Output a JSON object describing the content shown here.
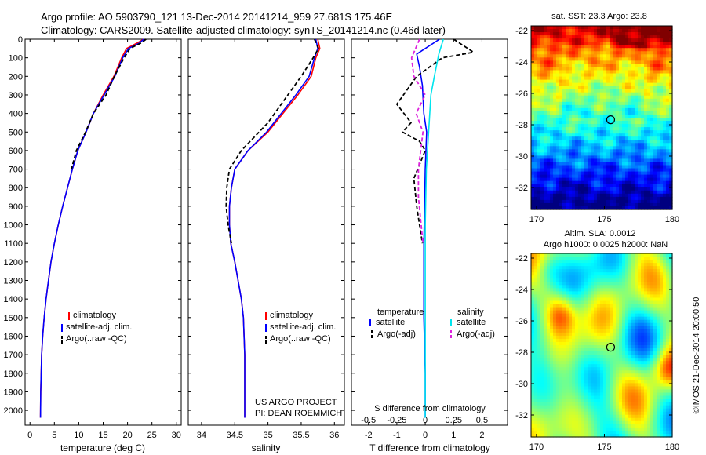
{
  "header": {
    "line1": "Argo profile: AO 5903790_121 13-Dec-2014 20141214_959 27.681S 175.46E",
    "line2": "Climatology: CARS2009. Satellite-adjusted climatology: synTS_20141214.nc (0.46d later)"
  },
  "panels": {
    "temperature": {
      "xlabel": "temperature (deg C)",
      "legend": [
        "climatology",
        "satellite-adj. clim.",
        "Argo(..raw -QC)"
      ]
    },
    "salinity": {
      "xlabel": "salinity",
      "legend": [
        "climatology",
        "satellite-adj. clim.",
        "Argo(..raw -QC)"
      ],
      "credit_1": "US ARGO PROJECT",
      "credit_2": "PI: DEAN ROEMMICH"
    },
    "difference": {
      "xlabel_top": "S difference from climatology",
      "xlabel_bottom": "T difference from climatology",
      "legend_temp_title": "temperature",
      "legend_sal_title": "salinity",
      "legend_temp": [
        "satellite",
        "Argo(-adj)"
      ],
      "legend_sal": [
        "satellite",
        "Argo(-adj)"
      ]
    }
  },
  "maps": {
    "sst_title": "sat. SST: 23.3 Argo: 23.8",
    "sla_title_1": "Altim. SLA: 0.0012",
    "sla_title_2": "Argo h1000: 0.0025 h2000: NaN",
    "stamp": "©IMOS 21-Dec-2014 20:00:50",
    "float_lat": -27.681,
    "float_lon": 175.46,
    "xticks": [
      "170",
      "175",
      "180"
    ],
    "yticks": [
      "-22",
      "-24",
      "-26",
      "-28",
      "-30",
      "-32"
    ]
  },
  "colors": {
    "climatology": "#ff0000",
    "satellite": "#0000ff",
    "argo": "#000000",
    "sal_satellite": "#00e5ee",
    "sal_argo": "#dd22dd"
  },
  "chart_data": [
    {
      "type": "line",
      "xlabel": "temperature (deg C)",
      "ylabel": "",
      "xlim": [
        -1,
        31
      ],
      "ylim": [
        2080,
        0
      ],
      "xticks": [
        0,
        5,
        10,
        15,
        20,
        25,
        30
      ],
      "yticks": [
        0,
        100,
        200,
        300,
        400,
        500,
        600,
        700,
        800,
        900,
        1000,
        1100,
        1200,
        1300,
        1400,
        1500,
        1600,
        1700,
        1800,
        1900,
        2000
      ],
      "series": [
        {
          "name": "climatology",
          "x": [
            23.3,
            22.0,
            19.8,
            18.8,
            17.2,
            15.0,
            13.0,
            11.5,
            9.8,
            8.7,
            7.7,
            6.7,
            5.8,
            5.0,
            4.3,
            3.8,
            3.3,
            2.9,
            2.6,
            2.4,
            2.2,
            2.15
          ],
          "y": [
            0,
            20,
            50,
            100,
            200,
            300,
            400,
            500,
            600,
            700,
            800,
            900,
            1000,
            1100,
            1200,
            1300,
            1400,
            1500,
            1600,
            1700,
            1900,
            2040
          ]
        },
        {
          "name": "satellite-adj. clim.",
          "x": [
            23.3,
            22.5,
            20.2,
            19.0,
            17.4,
            15.2,
            13.0,
            11.5,
            9.8,
            8.7,
            7.7,
            6.7,
            5.8,
            5.0,
            4.3,
            3.8,
            3.3,
            2.9,
            2.6,
            2.4,
            2.2,
            2.15
          ],
          "y": [
            0,
            20,
            50,
            100,
            200,
            300,
            400,
            500,
            600,
            700,
            800,
            900,
            1000,
            1100,
            1200,
            1300,
            1400,
            1500,
            1600,
            1700,
            1900,
            2040
          ]
        },
        {
          "name": "Argo(..raw -QC)",
          "x": [
            23.8,
            22.8,
            20.5,
            19.3,
            17.3,
            15.6,
            13.0,
            11.4,
            9.5,
            8.5
          ],
          "y": [
            0,
            20,
            50,
            100,
            200,
            300,
            400,
            500,
            600,
            700
          ]
        }
      ]
    },
    {
      "type": "line",
      "xlabel": "salinity",
      "ylabel": "",
      "xlim": [
        33.8,
        36.15
      ],
      "ylim": [
        2080,
        0
      ],
      "xticks": [
        34,
        34.5,
        35,
        35.5,
        36
      ],
      "series": [
        {
          "name": "climatology",
          "x": [
            35.75,
            35.78,
            35.72,
            35.65,
            35.45,
            35.0,
            34.7,
            34.5,
            34.45,
            34.42,
            34.42,
            34.44,
            34.5,
            34.55,
            34.6,
            34.63,
            34.65,
            34.65,
            34.65
          ],
          "y": [
            0,
            50,
            100,
            200,
            300,
            500,
            600,
            700,
            800,
            900,
            1000,
            1100,
            1200,
            1300,
            1400,
            1500,
            1700,
            1900,
            2040
          ]
        },
        {
          "name": "satellite-adj. clim.",
          "x": [
            35.72,
            35.75,
            35.7,
            35.62,
            35.42,
            34.98,
            34.7,
            34.5,
            34.45,
            34.42,
            34.42,
            34.44,
            34.5,
            34.55,
            34.6,
            34.63,
            34.65,
            34.65,
            34.65
          ],
          "y": [
            0,
            50,
            100,
            200,
            300,
            500,
            600,
            700,
            800,
            900,
            1000,
            1100,
            1200,
            1300,
            1400,
            1500,
            1700,
            1900,
            2040
          ]
        },
        {
          "name": "Argo(..raw -QC)",
          "x": [
            35.7,
            35.76,
            35.68,
            35.5,
            35.3,
            35.0,
            34.6,
            34.42,
            34.38,
            34.37,
            34.4,
            34.45
          ],
          "y": [
            0,
            50,
            100,
            200,
            300,
            450,
            600,
            700,
            800,
            900,
            1000,
            1100
          ]
        }
      ]
    },
    {
      "type": "line",
      "xlabel": "T difference from climatology",
      "xlabel_top": "S difference from climatology",
      "xlim": [
        -2.6,
        2.9
      ],
      "ylim": [
        2080,
        0
      ],
      "xticks": [
        -2,
        -1,
        0,
        1,
        2
      ],
      "xticks_top": [
        -0.5,
        -0.25,
        0,
        0.25,
        0.5
      ],
      "series": [
        {
          "name": "temperature satellite",
          "x": [
            0.5,
            -0.3,
            -0.2,
            -0.1,
            -0.05,
            0.05,
            0.0,
            -0.02,
            -0.05,
            -0.05,
            -0.05,
            0.0,
            0.0
          ],
          "y": [
            0,
            80,
            150,
            250,
            400,
            500,
            700,
            900,
            1100,
            1300,
            1500,
            1800,
            2040
          ]
        },
        {
          "name": "temperature Argo(-adj)",
          "x": [
            1.0,
            1.7,
            0.6,
            -0.3,
            -1.0,
            -0.5,
            -0.8,
            -0.2,
            0.0,
            -0.4,
            -0.3,
            -0.2,
            -0.1
          ],
          "y": [
            0,
            70,
            100,
            200,
            350,
            450,
            500,
            550,
            600,
            750,
            900,
            1000,
            1100
          ]
        },
        {
          "name": "salinity satellite",
          "x": [
            0.16,
            0.12,
            0.08,
            0.05,
            0.03,
            0.01,
            0.0,
            0.0,
            0.0
          ],
          "y": [
            0,
            80,
            200,
            300,
            500,
            700,
            1000,
            1500,
            2040
          ]
        },
        {
          "name": "salinity Argo(-adj)",
          "x": [
            -0.05,
            -0.12,
            -0.1,
            0.0,
            -0.08,
            -0.02,
            -0.06,
            -0.06,
            -0.02
          ],
          "y": [
            0,
            100,
            200,
            300,
            400,
            500,
            700,
            850,
            1100
          ]
        }
      ]
    }
  ]
}
